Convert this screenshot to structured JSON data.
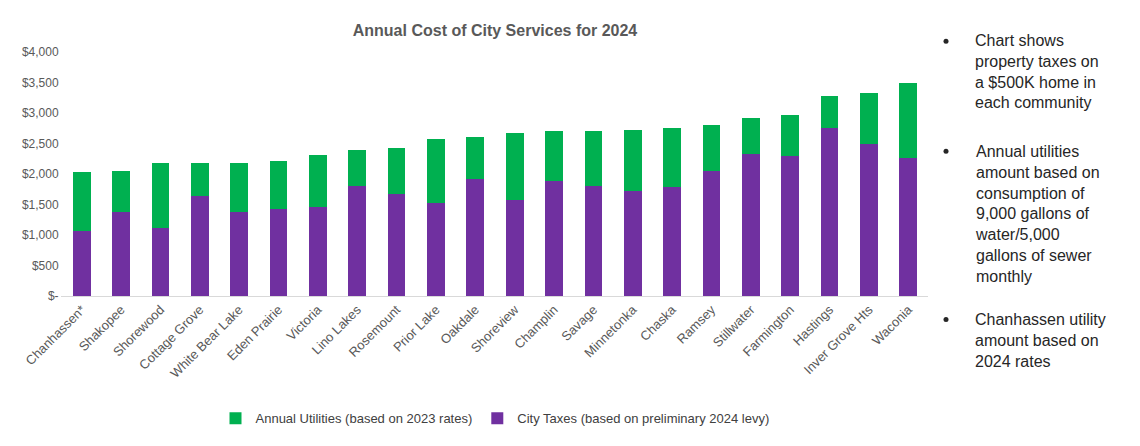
{
  "chart_data": {
    "type": "bar",
    "title": "Annual Cost of City Services for 2024",
    "stacked": true,
    "grid": false,
    "legend": "bottom",
    "categories": [
      "Chanhassen*",
      "Shakopee",
      "Shorewood",
      "Cottage Grove",
      "White Bear Lake",
      "Eden Prairie",
      "Victoria",
      "Lino Lakes",
      "Rosemount",
      "Prior Lake",
      "Oakdale",
      "Shoreview",
      "Champlin",
      "Savage",
      "Minnetonka",
      "Chaska",
      "Ramsey",
      "Stillwater",
      "Farmington",
      "Hastings",
      "Inver Grove Hts",
      "Waconia"
    ],
    "series": [
      {
        "name": "City Taxes (based on preliminary 2024 levy)",
        "color": "#7030a0",
        "values": [
          1060,
          1380,
          1110,
          1640,
          1380,
          1420,
          1460,
          1800,
          1670,
          1520,
          1920,
          1580,
          1890,
          1800,
          1720,
          1780,
          2050,
          2330,
          2300,
          2750,
          2490,
          2270
        ]
      },
      {
        "name": "Annual Utilities (based on 2023 rates)",
        "color": "#00b050",
        "values": [
          970,
          670,
          1070,
          540,
          800,
          790,
          850,
          590,
          750,
          1060,
          680,
          1090,
          810,
          900,
          1000,
          970,
          750,
          590,
          670,
          530,
          830,
          1230
        ]
      }
    ],
    "ylim": [
      0,
      4000
    ],
    "yticks": [
      {
        "value": 0,
        "label": "$-"
      },
      {
        "value": 500,
        "label": "$500"
      },
      {
        "value": 1000,
        "label": "$1,000"
      },
      {
        "value": 1500,
        "label": "$1,500"
      },
      {
        "value": 2000,
        "label": "$2,000"
      },
      {
        "value": 2500,
        "label": "$2,500"
      },
      {
        "value": 3000,
        "label": "$3,000"
      },
      {
        "value": 3500,
        "label": "$3,500"
      },
      {
        "value": 4000,
        "label": "$4,000"
      }
    ],
    "annotations": [
      "Chart shows property taxes on a $500K home in each community",
      "Annual utilities amount based on consumption of 9,000 gallons of water/5,000 gallons of sewer monthly",
      "Chanhassen utility amount based on 2024 rates"
    ]
  }
}
